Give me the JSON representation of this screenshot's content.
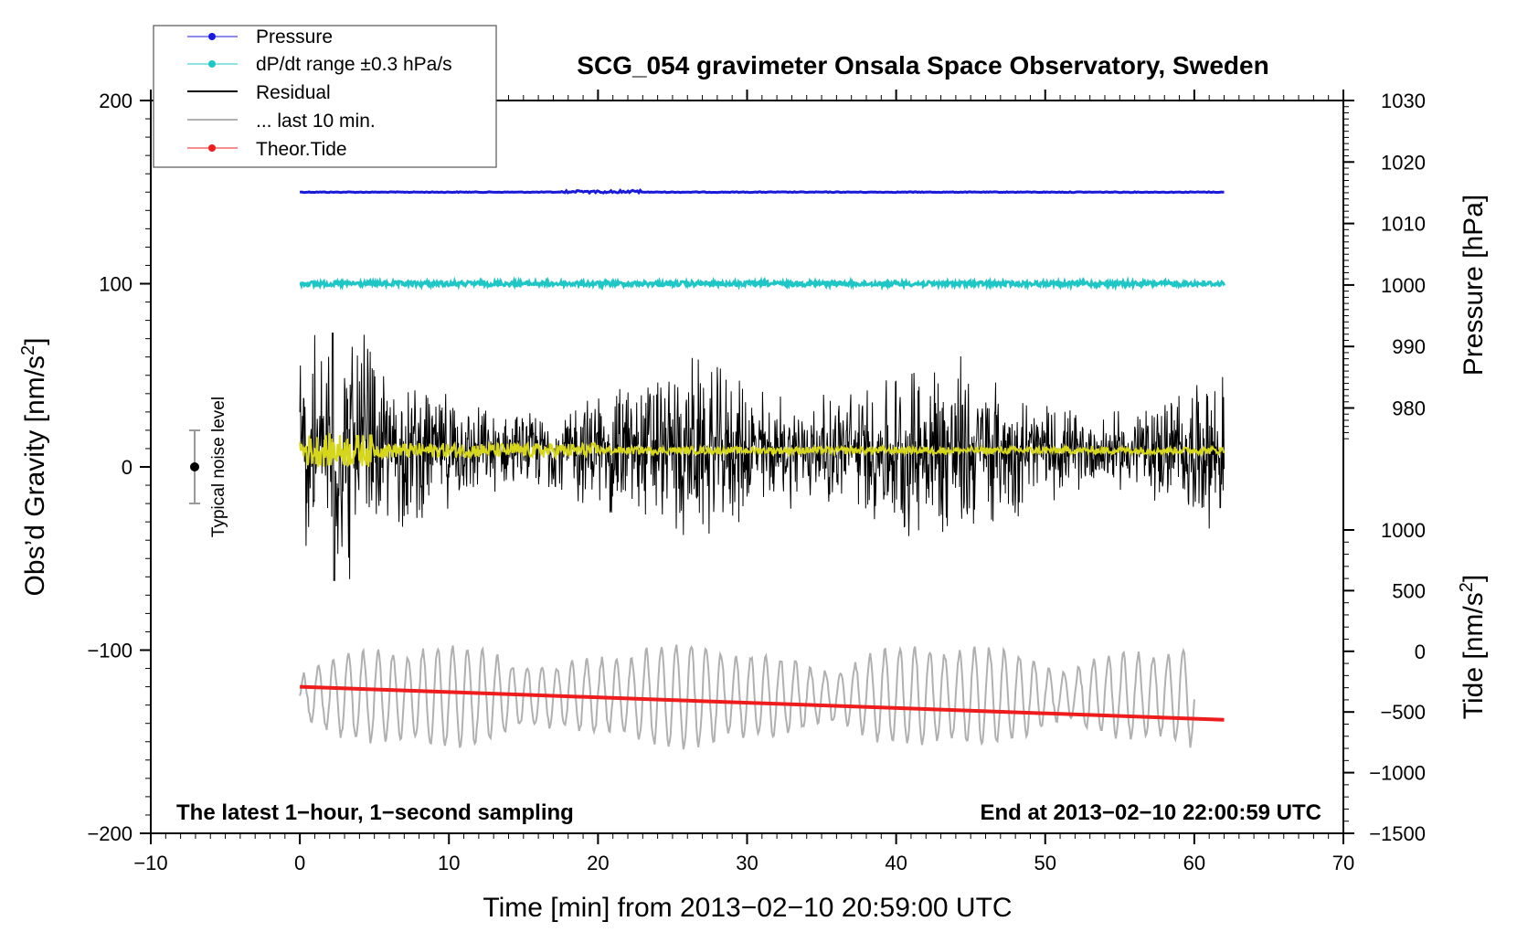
{
  "chart_data": {
    "type": "line",
    "title": "SCG_054 gravimeter Onsala Space Observatory, Sweden",
    "xlabel": "Time [min] from 2013−02−10 20:59:00 UTC",
    "ylabel_left_prefix": "Obs’d Gravity [nm/s",
    "ylabel_left_sup": "2",
    "ylabel_left_suffix": "]",
    "ylabel_pressure": "Pressure [hPa]",
    "ylabel_tide_prefix": "Tide [nm/s",
    "ylabel_tide_sup": "2",
    "ylabel_tide_suffix": "]",
    "xlim": [
      -10,
      70
    ],
    "ylim": [
      -200,
      200
    ],
    "pressure_lim": [
      970,
      1030
    ],
    "tide_lim": [
      -1500,
      1500
    ],
    "x_ticks": [
      "−10",
      "0",
      "10",
      "20",
      "30",
      "40",
      "50",
      "60",
      "70"
    ],
    "x_tick_values": [
      -10,
      0,
      10,
      20,
      30,
      40,
      50,
      60,
      70
    ],
    "y_ticks": [
      "200",
      "100",
      "0",
      "−100",
      "−200"
    ],
    "y_tick_values": [
      200,
      100,
      0,
      -100,
      -200
    ],
    "pressure_ticks": [
      "1030",
      "1020",
      "1010",
      "1000",
      "990",
      "980"
    ],
    "pressure_tick_values": [
      1030,
      1020,
      1010,
      1000,
      990,
      980
    ],
    "tide_ticks": [
      "1000",
      "500",
      "0",
      "−500",
      "−1000",
      "−1500"
    ],
    "tide_tick_values": [
      1000,
      500,
      0,
      -500,
      -1000,
      -1500
    ],
    "legend": [
      "Pressure",
      "dP/dt range ±0.3 hPa/s",
      "Residual",
      "... last 10 min.",
      "Theor.Tide"
    ],
    "legend_position": "top-left",
    "annotation_left": "The latest 1−hour, 1−second sampling",
    "annotation_right": "End at 2013−02−10 22:00:59 UTC",
    "noise_label": "Typical noise level",
    "noise_bar": {
      "x": -7,
      "center": 0,
      "half_range": 20
    },
    "series": [
      {
        "name": "Pressure",
        "color": "#1a1adb",
        "axis": "pressure",
        "x_range": [
          0,
          62
        ],
        "level": 1015.1
      },
      {
        "name": "dP/dt range",
        "color": "#1fc6c6",
        "axis": "gravity",
        "x_range": [
          0,
          62
        ],
        "level": 100
      },
      {
        "name": "Residual",
        "color": "#000000",
        "axis": "gravity",
        "x_range": [
          0,
          62
        ],
        "center": 9,
        "amplitude_min": -62,
        "amplitude_max": 73
      },
      {
        "name": "Residual smoothed",
        "color": "#d6d61c",
        "axis": "gravity",
        "x_range": [
          0,
          62
        ],
        "center": 9
      },
      {
        "name": "... last 10 min.",
        "color": "#b0b0b0",
        "axis": "gravity",
        "x_range": [
          0,
          60
        ],
        "center": -125,
        "min": -155,
        "max": -95
      },
      {
        "name": "Theor.Tide",
        "color": "#ee1c1c",
        "axis": "gravity",
        "x": [
          0,
          62
        ],
        "y": [
          -120,
          -138
        ]
      }
    ],
    "colors": {
      "pressure": "#1a1adb",
      "dpdt": "#1fc6c6",
      "residual": "#000000",
      "last10": "#b0b0b0",
      "tide": "#ee1c1c",
      "smooth": "#d6d61c"
    }
  }
}
